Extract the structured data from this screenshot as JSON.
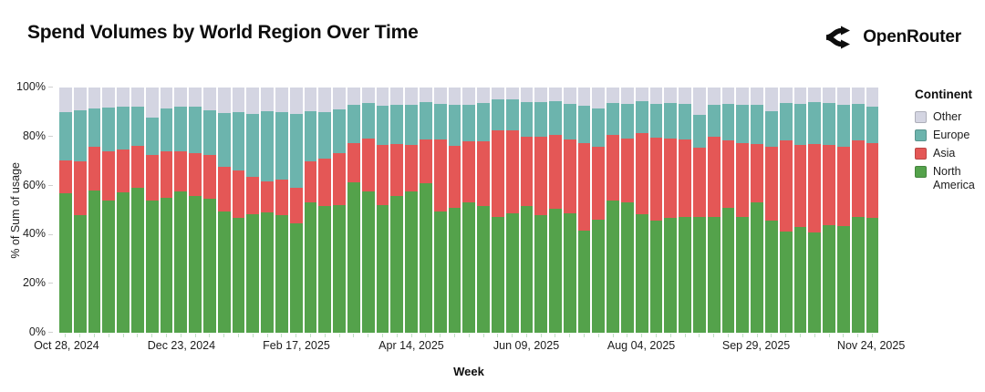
{
  "header": {
    "title": "Spend Volumes by World Region Over Time",
    "brand": "OpenRouter"
  },
  "legend": {
    "title": "Continent",
    "items": [
      {
        "label": "Other",
        "color": "#d4d5e2"
      },
      {
        "label": "Europe",
        "color": "#6cb4ad"
      },
      {
        "label": "Asia",
        "color": "#e45756"
      },
      {
        "label": "North America",
        "color": "#54a24b"
      }
    ]
  },
  "chart_data": {
    "type": "bar",
    "stacked": true,
    "normalized": true,
    "title": "Spend Volumes by World Region Over Time",
    "xlabel": "Week",
    "ylabel": "% of Sum of usage",
    "ylim": [
      0,
      100
    ],
    "y_tick_labels": [
      "100%",
      "80%",
      "60%",
      "40%",
      "20%",
      "0%"
    ],
    "x": [
      "Oct 28, 2024",
      "Nov 04, 2024",
      "Nov 11, 2024",
      "Nov 18, 2024",
      "Nov 25, 2024",
      "Dec 02, 2024",
      "Dec 09, 2024",
      "Dec 16, 2024",
      "Dec 23, 2024",
      "Dec 30, 2024",
      "Jan 06, 2025",
      "Jan 13, 2025",
      "Jan 20, 2025",
      "Jan 27, 2025",
      "Feb 03, 2025",
      "Feb 10, 2025",
      "Feb 17, 2025",
      "Feb 24, 2025",
      "Mar 03, 2025",
      "Mar 10, 2025",
      "Mar 17, 2025",
      "Mar 24, 2025",
      "Mar 31, 2025",
      "Apr 07, 2025",
      "Apr 14, 2025",
      "Apr 21, 2025",
      "Apr 28, 2025",
      "May 05, 2025",
      "May 12, 2025",
      "May 19, 2025",
      "May 26, 2025",
      "Jun 02, 2025",
      "Jun 09, 2025",
      "Jun 16, 2025",
      "Jun 23, 2025",
      "Jun 30, 2025",
      "Jul 07, 2025",
      "Jul 14, 2025",
      "Jul 21, 2025",
      "Jul 28, 2025",
      "Aug 04, 2025",
      "Aug 11, 2025",
      "Aug 18, 2025",
      "Aug 25, 2025",
      "Sep 01, 2025",
      "Sep 08, 2025",
      "Sep 15, 2025",
      "Sep 22, 2025",
      "Sep 29, 2025",
      "Oct 06, 2025",
      "Oct 13, 2025",
      "Oct 20, 2025",
      "Oct 27, 2025",
      "Nov 03, 2025",
      "Nov 10, 2025",
      "Nov 17, 2025",
      "Nov 24, 2025"
    ],
    "x_tick_indices": [
      0,
      8,
      16,
      24,
      32,
      40,
      48,
      56
    ],
    "x_tick_labels": [
      "Oct 28, 2024",
      "Dec 23, 2024",
      "Feb 17, 2025",
      "Apr 14, 2025",
      "Jun 09, 2025",
      "Aug 04, 2025",
      "Sep 29, 2025",
      "Nov 24, 2025"
    ],
    "series": [
      {
        "name": "North America",
        "color": "#54a24b",
        "values": [
          56.7,
          47.8,
          58,
          54,
          57.1,
          59,
          54,
          55,
          57.5,
          55.6,
          54.8,
          49.3,
          47,
          48.3,
          49,
          47.8,
          44.6,
          53,
          51.7,
          52,
          61.5,
          57.8,
          52,
          55.6,
          57.5,
          61,
          49.5,
          51,
          53,
          51.7,
          47.4,
          48.6,
          51.5,
          47.8,
          50.7,
          48.6,
          41.5,
          46.2,
          53.8,
          53,
          48.3,
          45.6,
          47,
          47.4,
          47.4,
          47.1,
          50.8,
          47.1,
          53,
          45.8,
          41.3,
          43.1,
          41,
          43.7,
          43.5,
          47.4,
          46.8
        ]
      },
      {
        "name": "Asia",
        "color": "#e45756",
        "values": [
          13.7,
          22.1,
          17.7,
          20.1,
          17.8,
          17.4,
          18.6,
          19.1,
          16.5,
          17.8,
          17.7,
          18.3,
          19.2,
          15.1,
          12.8,
          14.6,
          14.7,
          17,
          19.4,
          21.2,
          15.7,
          21.5,
          24.5,
          21.2,
          19,
          17.9,
          29.2,
          25.4,
          25.1,
          26.4,
          35.2,
          34,
          28.4,
          32,
          29.8,
          30.3,
          35.7,
          29.8,
          26.7,
          26.3,
          33.1,
          34,
          32.3,
          31.3,
          28,
          33,
          27.6,
          30.1,
          23.8,
          30.2,
          37,
          33.4,
          35.8,
          32.8,
          32.5,
          30.9,
          30.4
        ]
      },
      {
        "name": "Europe",
        "color": "#6cb4ad",
        "values": [
          19.6,
          21,
          15.8,
          17.8,
          17.2,
          15.8,
          15.2,
          17.4,
          18.2,
          18.8,
          18.2,
          22.1,
          23.7,
          25.7,
          28.5,
          27.5,
          29.8,
          20.5,
          18.8,
          18,
          15.6,
          14.3,
          15.9,
          16,
          16.3,
          15.1,
          14.5,
          16.4,
          14.9,
          15.5,
          12.6,
          12.7,
          14.1,
          14.2,
          13.8,
          14.3,
          15.2,
          15.5,
          13.1,
          13.9,
          12.9,
          13.6,
          14.3,
          14.5,
          13.3,
          13,
          15,
          15.9,
          16,
          14.3,
          15.3,
          16.7,
          17.2,
          17.1,
          17.1,
          14.9,
          15
        ]
      },
      {
        "name": "Other",
        "color": "#d4d5e2",
        "values": [
          10,
          9.1,
          8.5,
          8.1,
          7.9,
          7.8,
          12.2,
          8.5,
          7.8,
          7.8,
          9.3,
          10.3,
          10.1,
          10.9,
          9.7,
          10.1,
          10.9,
          9.5,
          10.1,
          8.8,
          7.2,
          6.4,
          7.6,
          7.2,
          7.2,
          6,
          6.8,
          7.2,
          7,
          6.4,
          4.8,
          4.7,
          6,
          6,
          5.7,
          6.8,
          7.6,
          8.5,
          6.4,
          6.8,
          5.7,
          6.8,
          6.4,
          6.8,
          11.3,
          6.9,
          6.6,
          6.9,
          7.2,
          9.7,
          6.4,
          6.8,
          6,
          6.4,
          6.9,
          6.8,
          7.8
        ]
      }
    ]
  }
}
